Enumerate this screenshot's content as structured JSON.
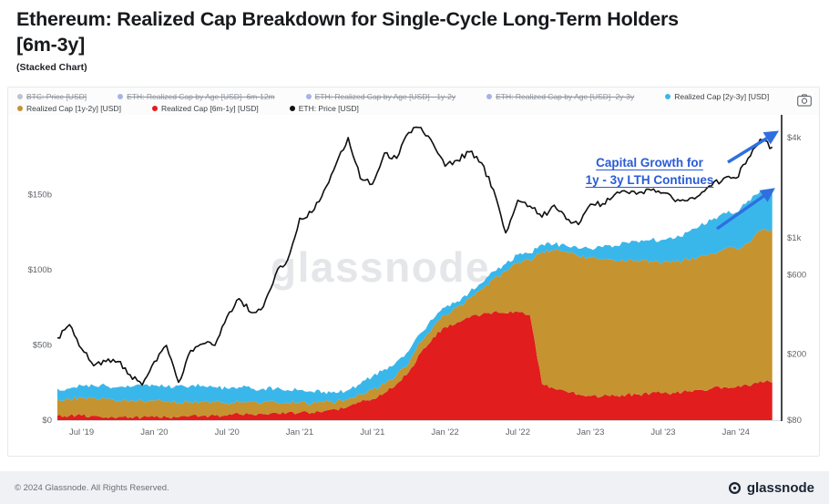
{
  "header": {
    "title_line1": "Ethereum: Realized Cap Breakdown for Single-Cycle Long-Term Holders",
    "title_line2": "[6m-3y]",
    "subtitle": "(Stacked Chart)"
  },
  "legend": {
    "rows": [
      [
        {
          "label": "BTC: Price [USD]",
          "color": "#8a93a6",
          "disabled": true
        },
        {
          "label": "ETH: Realized Cap by Age [USD]- 6m-12m",
          "color": "#5b79d8",
          "disabled": true
        },
        {
          "label": "ETH: Realized Cap by Age [USD] - 1y-2y",
          "color": "#5b79d8",
          "disabled": true
        },
        {
          "label": "ETH: Realized Cap by Age [USD]- 2y-3y",
          "color": "#5b79d8",
          "disabled": true
        },
        {
          "label": "Realized Cap [2y-3y] [USD]",
          "color": "#3ab7ea",
          "disabled": false
        }
      ],
      [
        {
          "label": "Realized Cap [1y-2y] [USD]",
          "color": "#c59330",
          "disabled": false
        },
        {
          "label": "Realized Cap [6m-1y] [USD]",
          "color": "#e11d1d",
          "disabled": false
        },
        {
          "label": "ETH: Price [USD]",
          "color": "#111111",
          "disabled": false
        }
      ]
    ]
  },
  "annotation": {
    "line1": "Capital Growth for",
    "line2": "1y - 3y LTH Continues",
    "color": "#2a5bd7",
    "arrow_color": "#2f6fe0"
  },
  "watermark": "glassnode",
  "footer": {
    "copyright": "© 2024 Glassnode. All Rights Reserved.",
    "brand": "glassnode"
  },
  "chart_data": {
    "type": "area",
    "stacked": true,
    "left_unit": "billion USD",
    "right_scale": "log",
    "ylim_left": [
      0,
      175
    ],
    "ylim_right": [
      80,
      4800
    ],
    "x_months": [
      "2019-05",
      "2019-06",
      "2019-07",
      "2019-08",
      "2019-09",
      "2019-10",
      "2019-11",
      "2019-12",
      "2020-01",
      "2020-02",
      "2020-03",
      "2020-04",
      "2020-05",
      "2020-06",
      "2020-07",
      "2020-08",
      "2020-09",
      "2020-10",
      "2020-11",
      "2020-12",
      "2021-01",
      "2021-02",
      "2021-03",
      "2021-04",
      "2021-05",
      "2021-06",
      "2021-07",
      "2021-08",
      "2021-09",
      "2021-10",
      "2021-11",
      "2021-12",
      "2022-01",
      "2022-02",
      "2022-03",
      "2022-04",
      "2022-05",
      "2022-06",
      "2022-07",
      "2022-08",
      "2022-09",
      "2022-10",
      "2022-11",
      "2022-12",
      "2023-01",
      "2023-02",
      "2023-03",
      "2023-04",
      "2023-05",
      "2023-06",
      "2023-07",
      "2023-08",
      "2023-09",
      "2023-10",
      "2023-11",
      "2023-12",
      "2024-01",
      "2024-02",
      "2024-03",
      "2024-04"
    ],
    "series": [
      {
        "name": "Realized Cap [6m-1y] [USD]",
        "color": "#e11d1d",
        "values": [
          3,
          3,
          3,
          3,
          2,
          2,
          2,
          2,
          2,
          2,
          2,
          3,
          3,
          3,
          3,
          4,
          4,
          4,
          5,
          5,
          5,
          5,
          6,
          7,
          9,
          12,
          14,
          18,
          24,
          32,
          45,
          55,
          62,
          65,
          68,
          70,
          72,
          71,
          72,
          70,
          24,
          21,
          19,
          17,
          16,
          16,
          16,
          17,
          17,
          18,
          18,
          18,
          19,
          20,
          21,
          22,
          22,
          23,
          26,
          25
        ]
      },
      {
        "name": "Realized Cap [1y-2y] [USD]",
        "color": "#c59330",
        "values": [
          11,
          11,
          12,
          12,
          12,
          11,
          11,
          11,
          11,
          10,
          10,
          9,
          9,
          9,
          8,
          8,
          8,
          8,
          7,
          7,
          7,
          6,
          6,
          5,
          5,
          5,
          6,
          6,
          6,
          6,
          7,
          7,
          8,
          10,
          13,
          17,
          22,
          28,
          33,
          36,
          88,
          92,
          93,
          92,
          92,
          91,
          90,
          89,
          88,
          88,
          87,
          87,
          88,
          89,
          90,
          92,
          92,
          95,
          100,
          102
        ]
      },
      {
        "name": "Realized Cap [2y-3y] [USD]",
        "color": "#3ab7ea",
        "values": [
          7,
          7,
          8,
          8,
          9,
          9,
          9,
          10,
          10,
          10,
          11,
          11,
          11,
          10,
          10,
          10,
          9,
          9,
          9,
          8,
          8,
          8,
          7,
          6,
          6,
          7,
          9,
          10,
          9,
          8,
          6,
          5,
          5,
          4,
          4,
          4,
          5,
          5,
          5,
          5,
          5,
          4,
          4,
          5,
          6,
          8,
          10,
          12,
          13,
          14,
          15,
          16,
          18,
          20,
          22,
          24,
          24,
          28,
          26,
          24
        ]
      }
    ],
    "price_line": {
      "name": "ETH: Price [USD]",
      "color": "#0e0e0e",
      "axis": "right",
      "values": [
        250,
        300,
        215,
        170,
        180,
        180,
        150,
        130,
        180,
        225,
        135,
        210,
        230,
        225,
        335,
        430,
        355,
        385,
        600,
        735,
        1310,
        1420,
        1920,
        2770,
        4000,
        2270,
        2100,
        3230,
        3000,
        4290,
        4600,
        3680,
        2690,
        2920,
        3280,
        2820,
        1940,
        1070,
        1680,
        1550,
        1330,
        1570,
        1290,
        1200,
        1590,
        1600,
        1820,
        1880,
        1870,
        1930,
        1860,
        1650,
        1670,
        1800,
        2050,
        2280,
        2280,
        3000,
        3900,
        3500
      ]
    },
    "left_ticks": [
      {
        "value": 0,
        "label": "$0"
      },
      {
        "value": 50,
        "label": "$50b"
      },
      {
        "value": 100,
        "label": "$100b"
      },
      {
        "value": 150,
        "label": "$150b"
      }
    ],
    "right_ticks": [
      {
        "value": 80,
        "label": "$80"
      },
      {
        "value": 200,
        "label": "$200"
      },
      {
        "value": 600,
        "label": "$600"
      },
      {
        "value": 1000,
        "label": "$1k"
      },
      {
        "value": 4000,
        "label": "$4k"
      }
    ],
    "x_ticks": [
      {
        "index": 2,
        "label": "Jul '19"
      },
      {
        "index": 8,
        "label": "Jan '20"
      },
      {
        "index": 14,
        "label": "Jul '20"
      },
      {
        "index": 20,
        "label": "Jan '21"
      },
      {
        "index": 26,
        "label": "Jul '21"
      },
      {
        "index": 32,
        "label": "Jan '22"
      },
      {
        "index": 38,
        "label": "Jul '22"
      },
      {
        "index": 44,
        "label": "Jan '23"
      },
      {
        "index": 50,
        "label": "Jul '23"
      },
      {
        "index": 56,
        "label": "Jan '24"
      }
    ]
  }
}
